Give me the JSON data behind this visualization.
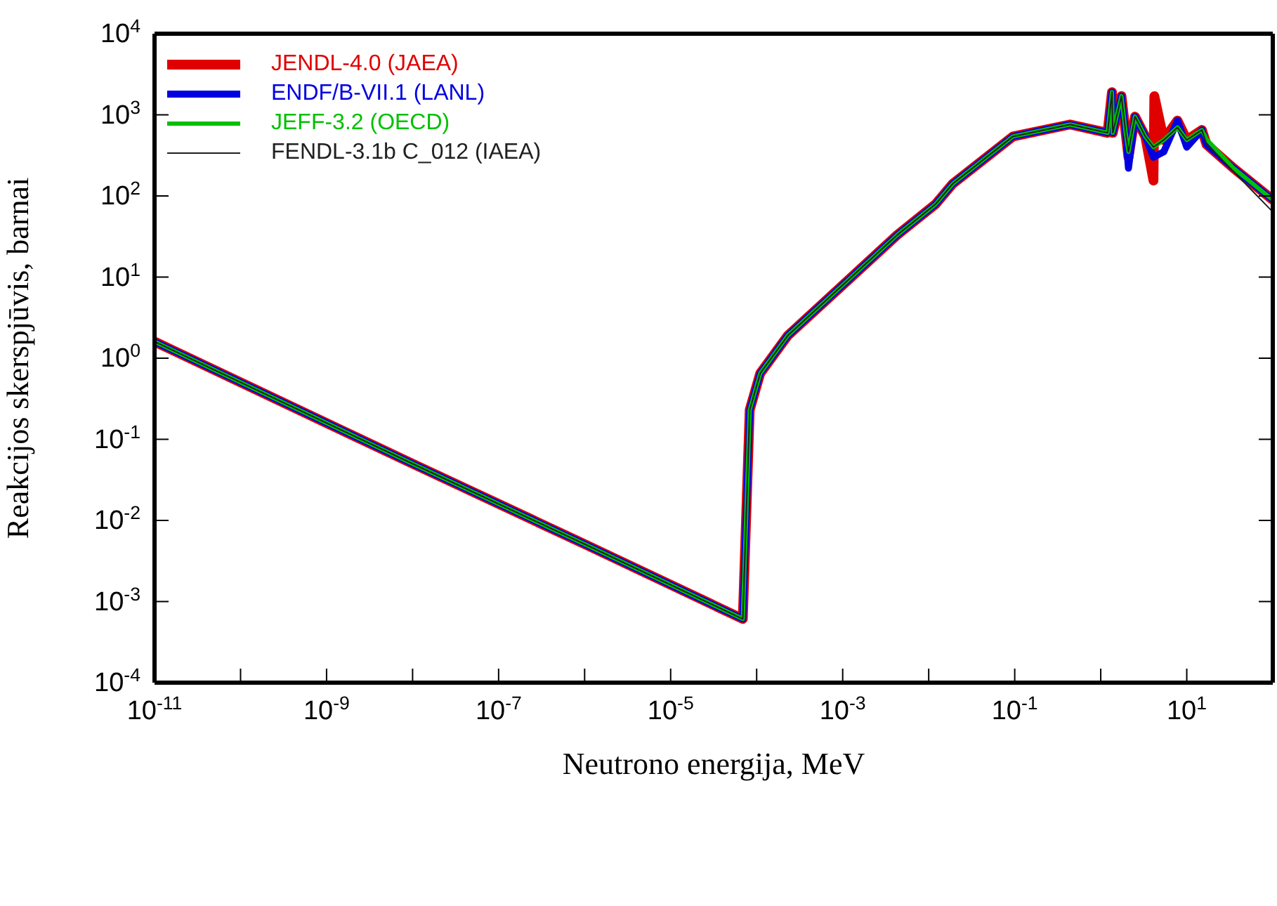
{
  "chart_data": {
    "type": "line",
    "xlabel": "Neutrono energija, MeV",
    "ylabel": "Reakcijos skerspjūvis, barnai",
    "log": "xy",
    "legend": "top left",
    "marker": "none",
    "line_style": "solid",
    "xlim": [
      1e-11,
      100
    ],
    "ylim": [
      0.0001,
      10000
    ],
    "xticks": [
      {
        "value": 1e-11,
        "label": "10$^{-11}$"
      },
      {
        "value": 1e-10,
        "label": null
      },
      {
        "value": 1e-09,
        "label": "10$^{-9}$"
      },
      {
        "value": 1e-08,
        "label": null
      },
      {
        "value": 1e-07,
        "label": "10$^{-7}$"
      },
      {
        "value": 1e-06,
        "label": null
      },
      {
        "value": 1e-05,
        "label": "10$^{-5}$"
      },
      {
        "value": 0.0001,
        "label": null
      },
      {
        "value": 0.001,
        "label": "10$^{-3}$"
      },
      {
        "value": 0.01,
        "label": null
      },
      {
        "value": 0.1,
        "label": "10$^{-1}$"
      },
      {
        "value": 1,
        "label": null
      },
      {
        "value": 10,
        "label": "10$^{1}$"
      }
    ],
    "yticks": [
      {
        "value": 0.0001,
        "label": "10$^{-4}$"
      },
      {
        "value": 0.001,
        "label": "10$^{-3}$"
      },
      {
        "value": 0.01,
        "label": "10$^{-2}$"
      },
      {
        "value": 0.1,
        "label": "10$^{-1}$"
      },
      {
        "value": 1,
        "label": "10$^{0}$"
      },
      {
        "value": 10,
        "label": "10$^{1}$"
      },
      {
        "value": 100,
        "label": "10$^{2}$"
      },
      {
        "value": 1000,
        "label": "10$^{3}$"
      },
      {
        "value": 10000,
        "label": "10$^{4}$"
      }
    ],
    "series": [
      {
        "name": "JENDL-4.0 (JAEA)",
        "color": "#e00000",
        "x": [
          1e-11,
          1e-08,
          1e-06,
          6.9e-05,
          8.3e-05,
          0.00011,
          0.00023,
          0.0043,
          0.012,
          0.019,
          0.095,
          0.44,
          1.2,
          1.35,
          1.38,
          1.74,
          1.95,
          2.1,
          2.5,
          3.3,
          4.1,
          4.2,
          5.4,
          7.8,
          10,
          15,
          17,
          35,
          98
        ],
        "values": [
          1.6,
          0.05,
          0.0051,
          0.00061,
          0.23,
          0.65,
          1.9,
          33,
          79,
          141,
          540,
          760,
          600,
          1900,
          600,
          1700,
          600,
          300,
          950,
          540,
          155,
          1700,
          490,
          850,
          490,
          650,
          430,
          220,
          91
        ]
      },
      {
        "name": "ENDF/B-VII.1 (LANL)",
        "color": "#0000e0",
        "x": [
          1e-11,
          1e-08,
          1e-06,
          6.9e-05,
          8.3e-05,
          0.00011,
          0.00023,
          0.0043,
          0.012,
          0.019,
          0.095,
          0.44,
          1.2,
          1.35,
          1.38,
          1.74,
          1.95,
          2.1,
          2.5,
          3.3,
          4.1,
          5.4,
          7.8,
          10,
          15,
          17,
          35,
          98
        ],
        "values": [
          1.6,
          0.05,
          0.0051,
          0.00061,
          0.23,
          0.65,
          1.9,
          33,
          79,
          141,
          540,
          760,
          600,
          1900,
          600,
          1700,
          600,
          220,
          950,
          540,
          300,
          350,
          850,
          400,
          650,
          430,
          220,
          91
        ]
      },
      {
        "name": "JEFF-3.2 (OECD)",
        "color": "#00c000",
        "x": [
          1e-11,
          1e-08,
          1e-06,
          6.9e-05,
          8.3e-05,
          0.00011,
          0.00023,
          0.0043,
          0.012,
          0.019,
          0.095,
          0.44,
          1.2,
          1.35,
          1.38,
          1.74,
          1.95,
          2.1,
          2.5,
          3.3,
          4.1,
          5.4,
          7.8,
          10,
          15,
          17,
          35,
          98
        ],
        "values": [
          1.6,
          0.05,
          0.0051,
          0.00061,
          0.23,
          0.65,
          1.9,
          33,
          79,
          141,
          540,
          760,
          600,
          1900,
          600,
          1700,
          600,
          350,
          950,
          540,
          400,
          490,
          700,
          490,
          650,
          500,
          220,
          91
        ]
      },
      {
        "name": "FENDL-3.1b C_012 (IAEA)",
        "color": "#202020",
        "x": [
          1e-11,
          1e-08,
          1e-06,
          6.9e-05,
          8.3e-05,
          0.00011,
          0.00023,
          0.0043,
          0.012,
          0.019,
          0.095,
          0.44,
          1.2,
          1.35,
          1.38,
          1.74,
          1.95,
          2.1,
          2.5,
          3.3,
          4.1,
          5.4,
          7.8,
          10,
          15,
          17,
          35,
          98
        ],
        "values": [
          1.6,
          0.05,
          0.0051,
          0.00061,
          0.23,
          0.65,
          1.9,
          33,
          79,
          141,
          540,
          760,
          600,
          1900,
          600,
          1700,
          600,
          350,
          950,
          540,
          400,
          490,
          700,
          490,
          650,
          430,
          200,
          65
        ]
      }
    ]
  }
}
